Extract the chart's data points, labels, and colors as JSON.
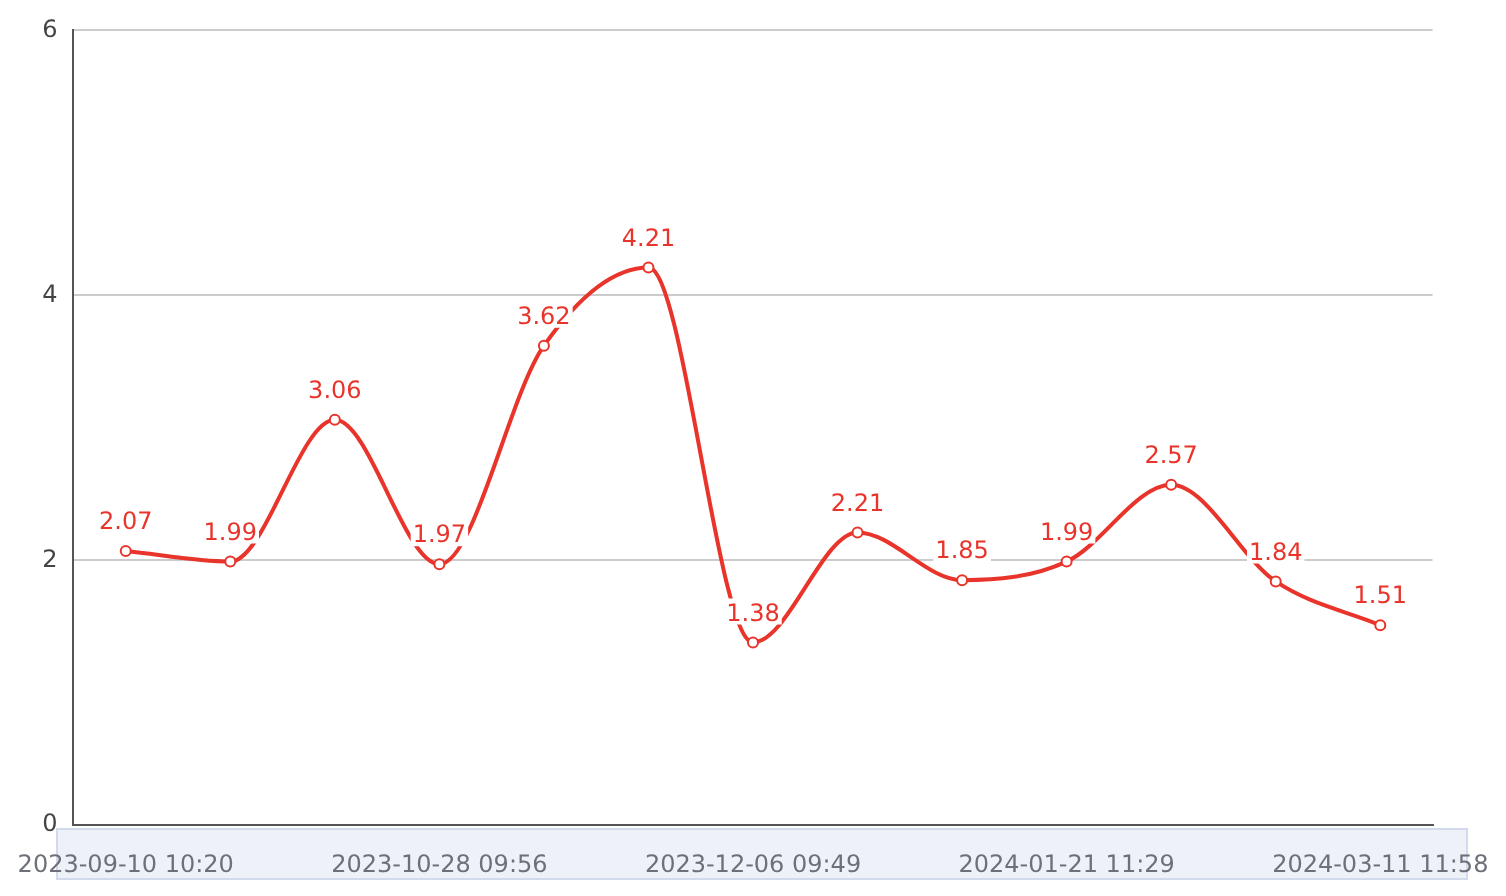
{
  "chart_data": {
    "type": "line",
    "categories": [
      "2023-09-10 10:20",
      null,
      null,
      "2023-10-28 09:56",
      null,
      null,
      "2023-12-06 09:49",
      null,
      null,
      "2024-01-21 11:29",
      null,
      null,
      "2024-03-11 11:58"
    ],
    "series": [
      {
        "color": "#e8342a",
        "values": [
          2.07,
          1.99,
          3.06,
          1.97,
          3.62,
          4.21,
          1.38,
          2.21,
          1.85,
          1.99,
          2.57,
          1.84,
          1.51
        ]
      }
    ],
    "ylim": [
      0,
      6
    ],
    "yticks": [
      0,
      2,
      4,
      6
    ],
    "grid": "y",
    "marker": "circle",
    "data_labels": true,
    "legend": false
  }
}
